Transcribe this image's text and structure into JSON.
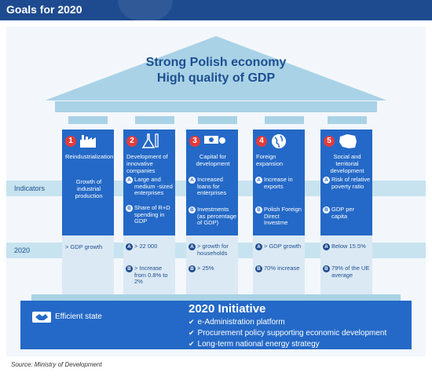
{
  "header": {
    "title": "Goals for 2020"
  },
  "roof": {
    "title_line1": "Strong Polish economy",
    "title_line2": "High quality of GDP"
  },
  "rows": {
    "indicators": "Indicators",
    "year": "2020"
  },
  "columns": [
    {
      "number": "1",
      "icon": "factory-icon",
      "title": "Reindustrialization",
      "indicator_plain": "Growth of industrial production",
      "goals_plain": "> GDP growth"
    },
    {
      "number": "2",
      "icon": "lab-flask-icon",
      "title": "Development of innovative companies",
      "indicators": [
        {
          "mark": "A",
          "text": "Large and medium -sized enterprises"
        },
        {
          "mark": "B",
          "text": "Share of R+D spending in GDP"
        }
      ],
      "goals": [
        {
          "mark": "A",
          "text": "> 22 000"
        },
        {
          "mark": "B",
          "text": "> Increase from 0.8% to 2%"
        }
      ]
    },
    {
      "number": "3",
      "icon": "money-icon",
      "title": "Capital for development",
      "indicators": [
        {
          "mark": "A",
          "text": "Increased loans for enterprises"
        },
        {
          "mark": "B",
          "text": "Investments (as percentage of GDP)"
        }
      ],
      "goals": [
        {
          "mark": "A",
          "text": "> growth for households"
        },
        {
          "mark": "B",
          "text": "> 25%"
        }
      ]
    },
    {
      "number": "4",
      "icon": "globe-icon",
      "title": "Foreign expansion",
      "indicators": [
        {
          "mark": "A",
          "text": "Increase in exports"
        },
        {
          "mark": "B",
          "text": "Polish Foreign Direct Investme"
        }
      ],
      "goals": [
        {
          "mark": "A",
          "text": "> GDP growth"
        },
        {
          "mark": "B",
          "text": "70% increase"
        }
      ]
    },
    {
      "number": "5",
      "icon": "poland-map-icon",
      "title": "Social and territorial development",
      "indicators": [
        {
          "mark": "A",
          "text": "Risk of relative poverty ratio"
        },
        {
          "mark": "B",
          "text": "GDP per capita"
        }
      ],
      "goals": [
        {
          "mark": "A",
          "text": "Below 15.5%"
        },
        {
          "mark": "B",
          "text": "79% of the UE average"
        }
      ]
    }
  ],
  "base": {
    "efficient_label": "Efficient state",
    "initiative_title": "2020 Initiative",
    "items": [
      "e-Administration platform",
      "Procurement policy supporting economic development",
      "Long-term national energy strategy"
    ],
    "check": "✔"
  },
  "source": "Source: Ministry of Development"
}
